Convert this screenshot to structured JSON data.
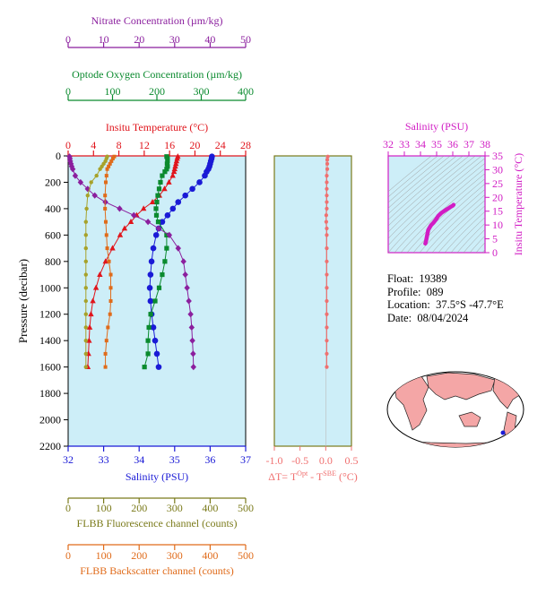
{
  "float_info": {
    "float_label": "Float:",
    "float_value": "19389",
    "profile_label": "Profile:",
    "profile_value": "089",
    "location_label": "Location:",
    "location_value": "37.5°S  -47.7°E",
    "date_label": "Date:",
    "date_value": "08/04/2024"
  },
  "colors": {
    "plot_bg": "#cdeef8",
    "nitrate": "#8b1f9e",
    "oxygen": "#0a8a2e",
    "temperature": "#e0151c",
    "salinity": "#1a1ad6",
    "fluorescence": "#a7a22a",
    "backscatter": "#e06b1a",
    "delta_t": "#f07070",
    "ts_magenta": "#d11dc4",
    "frame_olive": "#7a7a1a",
    "map_land": "#f4a6a6"
  },
  "chart_data": [
    {
      "type": "line",
      "name": "main_profile",
      "ylabel": "Pressure (decibar)",
      "ylim": [
        2200,
        0
      ],
      "yticks": [
        "0",
        "200",
        "400",
        "600",
        "800",
        "1000",
        "1200",
        "1400",
        "1600",
        "1800",
        "2000",
        "2200"
      ],
      "axes": {
        "nitrate": {
          "label": "Nitrate Concentration (µm/kg)",
          "range": [
            0,
            50
          ],
          "ticks": [
            "0",
            "10",
            "20",
            "30",
            "40",
            "50"
          ]
        },
        "oxygen": {
          "label": "Optode Oxygen Concentration (µm/kg)",
          "range": [
            0,
            400
          ],
          "ticks": [
            "0",
            "100",
            "200",
            "300",
            "400"
          ]
        },
        "temperature": {
          "label": "Insitu Temperature (°C)",
          "range": [
            0,
            28
          ],
          "ticks": [
            "0",
            "4",
            "8",
            "12",
            "16",
            "20",
            "24",
            "28"
          ]
        },
        "salinity": {
          "label": "Salinity (PSU)",
          "range": [
            32,
            37
          ],
          "ticks": [
            "32",
            "33",
            "34",
            "35",
            "36",
            "37"
          ]
        },
        "fluorescence": {
          "label": "FLBB Fluorescence channel (counts)",
          "range": [
            0,
            500
          ],
          "ticks": [
            "0",
            "100",
            "200",
            "300",
            "400",
            "500"
          ]
        },
        "backscatter": {
          "label": "FLBB Backscatter channel (counts)",
          "range": [
            0,
            500
          ],
          "ticks": [
            "0",
            "100",
            "200",
            "300",
            "400",
            "500"
          ]
        }
      },
      "series": [
        {
          "key": "temperature",
          "marker": "triangle",
          "pressure": [
            5,
            20,
            40,
            60,
            80,
            100,
            120,
            150,
            200,
            250,
            300,
            350,
            400,
            450,
            500,
            550,
            600,
            700,
            800,
            900,
            1000,
            1100,
            1200,
            1300,
            1400,
            1500,
            1600
          ],
          "values": [
            17.3,
            17.2,
            17.1,
            17.0,
            16.9,
            16.8,
            16.7,
            16.5,
            15.9,
            15.2,
            14.4,
            13.3,
            11.9,
            10.8,
            9.9,
            8.9,
            8.2,
            7.0,
            5.9,
            5.0,
            4.4,
            3.9,
            3.6,
            3.4,
            3.3,
            3.2,
            3.1
          ]
        },
        {
          "key": "salinity",
          "marker": "circle",
          "pressure": [
            5,
            20,
            40,
            60,
            80,
            100,
            120,
            150,
            200,
            250,
            300,
            350,
            400,
            450,
            500,
            550,
            600,
            700,
            800,
            900,
            1000,
            1100,
            1200,
            1300,
            1400,
            1500,
            1600
          ],
          "values": [
            36.05,
            36.04,
            36.02,
            36.0,
            35.98,
            35.95,
            35.9,
            35.85,
            35.7,
            35.5,
            35.3,
            35.1,
            34.95,
            34.8,
            34.65,
            34.55,
            34.48,
            34.4,
            34.35,
            34.32,
            34.3,
            34.32,
            34.35,
            34.4,
            34.45,
            34.5,
            34.55
          ]
        },
        {
          "key": "oxygen",
          "marker": "square",
          "pressure": [
            5,
            20,
            40,
            60,
            80,
            100,
            120,
            150,
            200,
            250,
            300,
            350,
            400,
            450,
            500,
            600,
            700,
            800,
            900,
            1000,
            1100,
            1200,
            1300,
            1400,
            1500,
            1600
          ],
          "values": [
            222,
            224,
            224,
            223,
            224,
            222,
            218,
            212,
            208,
            205,
            202,
            200,
            198,
            199,
            203,
            222,
            222,
            218,
            212,
            205,
            196,
            186,
            182,
            180,
            180,
            172
          ]
        },
        {
          "key": "nitrate",
          "marker": "diamond",
          "pressure": [
            5,
            20,
            40,
            60,
            80,
            100,
            150,
            200,
            250,
            300,
            350,
            400,
            450,
            500,
            550,
            600,
            700,
            800,
            900,
            1000,
            1100,
            1200,
            1300,
            1400,
            1500,
            1600
          ],
          "values": [
            0.4,
            0.5,
            0.6,
            0.8,
            1.0,
            1.3,
            2.0,
            3.5,
            5.5,
            7.5,
            10.5,
            14.5,
            18.5,
            22.5,
            25.5,
            28.5,
            31.0,
            32.5,
            33.0,
            33.5,
            34.0,
            34.5,
            34.8,
            35.0,
            35.2,
            35.3
          ]
        },
        {
          "key": "fluorescence",
          "marker": "circle-small",
          "pressure": [
            5,
            20,
            40,
            60,
            80,
            100,
            150,
            200,
            300,
            400,
            500,
            600,
            700,
            800,
            900,
            1000,
            1100,
            1200,
            1300,
            1400,
            1500,
            1600
          ],
          "values": [
            110,
            108,
            105,
            100,
            95,
            90,
            80,
            65,
            55,
            52,
            50,
            50,
            50,
            50,
            50,
            50,
            50,
            50,
            50,
            50,
            50,
            50
          ]
        },
        {
          "key": "backscatter",
          "marker": "square-small",
          "pressure": [
            5,
            20,
            40,
            60,
            80,
            100,
            150,
            200,
            300,
            400,
            500,
            600,
            700,
            800,
            900,
            1000,
            1100,
            1200,
            1300,
            1400,
            1500,
            1600
          ],
          "values": [
            130,
            126,
            122,
            118,
            114,
            110,
            108,
            106,
            104,
            104,
            106,
            108,
            110,
            115,
            120,
            120,
            120,
            118,
            112,
            108,
            105,
            105
          ]
        }
      ]
    },
    {
      "type": "line",
      "name": "delta_t",
      "xlabel": "ΔT= T^Opt - T^SBE (°C)",
      "xlim": [
        -1.0,
        0.5
      ],
      "xticks": [
        "-1.0",
        "-0.5",
        "0.0",
        "0.5"
      ],
      "series": [
        {
          "key": "delta_t",
          "pressure": [
            5,
            30,
            60,
            100,
            150,
            200,
            250,
            300,
            350,
            400,
            450,
            500,
            550,
            600,
            700,
            800,
            900,
            1000,
            1100,
            1200,
            1300,
            1400,
            1500,
            1600
          ],
          "values": [
            0.04,
            0.03,
            0.03,
            0.03,
            0.02,
            0.02,
            0.02,
            0.02,
            0.02,
            0.02,
            0.01,
            0.01,
            0.02,
            0.02,
            0.02,
            0.02,
            0.02,
            0.02,
            0.02,
            0.02,
            0.02,
            0.02,
            0.02,
            0.02
          ]
        }
      ]
    },
    {
      "type": "scatter",
      "name": "ts_diagram",
      "xlabel": "Salinity (PSU)",
      "ylabel": "Insitu Temperature (°C)",
      "xlim": [
        32,
        38
      ],
      "ylim": [
        0,
        35
      ],
      "xticks": [
        "32",
        "33",
        "34",
        "35",
        "36",
        "37",
        "38"
      ],
      "yticks": [
        "0",
        "5",
        "10",
        "15",
        "20",
        "25",
        "30",
        "35"
      ],
      "salinity": [
        34.3,
        34.32,
        34.35,
        34.4,
        34.48,
        34.55,
        34.65,
        34.8,
        34.95,
        35.1,
        35.3,
        35.5,
        35.7,
        35.85,
        36.0,
        36.05
      ],
      "temperature": [
        3.3,
        3.6,
        4.4,
        5.9,
        8.2,
        8.9,
        9.9,
        10.8,
        11.9,
        13.3,
        14.4,
        15.2,
        15.9,
        16.5,
        17.0,
        17.3
      ]
    }
  ]
}
